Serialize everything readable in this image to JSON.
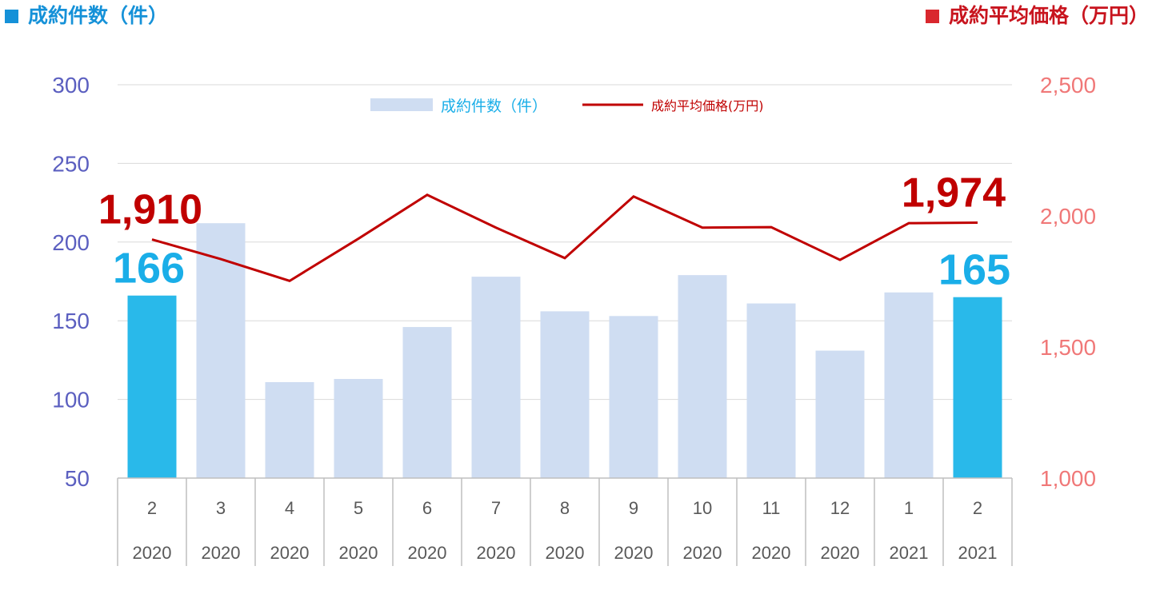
{
  "header": {
    "left_title": "成約件数（件）",
    "right_title": "成約平均価格（万円）"
  },
  "colors": {
    "bar": "#cfddf2",
    "bar_highlight": "#29b9ea",
    "line": "#c00000",
    "left_axis": "#5b5fc0",
    "right_axis": "#f07878",
    "header_left_square": "#1591d8",
    "header_right_square": "#d9282e",
    "label_blue": "#1aaee8",
    "label_red": "#c00000"
  },
  "chart_data": {
    "type": "bar",
    "categories": [
      [
        "2",
        "2020"
      ],
      [
        "3",
        "2020"
      ],
      [
        "4",
        "2020"
      ],
      [
        "5",
        "2020"
      ],
      [
        "6",
        "2020"
      ],
      [
        "7",
        "2020"
      ],
      [
        "8",
        "2020"
      ],
      [
        "9",
        "2020"
      ],
      [
        "10",
        "2020"
      ],
      [
        "11",
        "2020"
      ],
      [
        "12",
        "2020"
      ],
      [
        "1",
        "2021"
      ],
      [
        "2",
        "2021"
      ]
    ],
    "series": [
      {
        "name": "成約件数（件）",
        "type": "bar",
        "axis": "left",
        "values": [
          166,
          212,
          111,
          113,
          146,
          178,
          156,
          153,
          179,
          161,
          131,
          168,
          165
        ],
        "highlight_indices": [
          0,
          12
        ]
      },
      {
        "name": "成約平均価格(万円)",
        "type": "line",
        "axis": "right",
        "values": [
          1910,
          1835,
          1752,
          1913,
          2080,
          1955,
          1839,
          2074,
          1955,
          1957,
          1832,
          1972,
          1974
        ]
      }
    ],
    "y_left": {
      "ylim": [
        50,
        300
      ],
      "ticks": [
        "50",
        "100",
        "150",
        "200",
        "250",
        "300"
      ]
    },
    "y_right": {
      "ylim": [
        1000,
        2500
      ],
      "ticks": [
        "1,000",
        "1,500",
        "2,000",
        "2,500"
      ]
    },
    "annotations": [
      {
        "series": 1,
        "index": 0,
        "text": "1,910",
        "color": "red"
      },
      {
        "series": 1,
        "index": 12,
        "text": "1,974",
        "color": "red"
      },
      {
        "series": 0,
        "index": 0,
        "text": "166",
        "color": "blue"
      },
      {
        "series": 0,
        "index": 12,
        "text": "165",
        "color": "blue"
      }
    ],
    "legend_position": "top-center",
    "grid": true
  }
}
